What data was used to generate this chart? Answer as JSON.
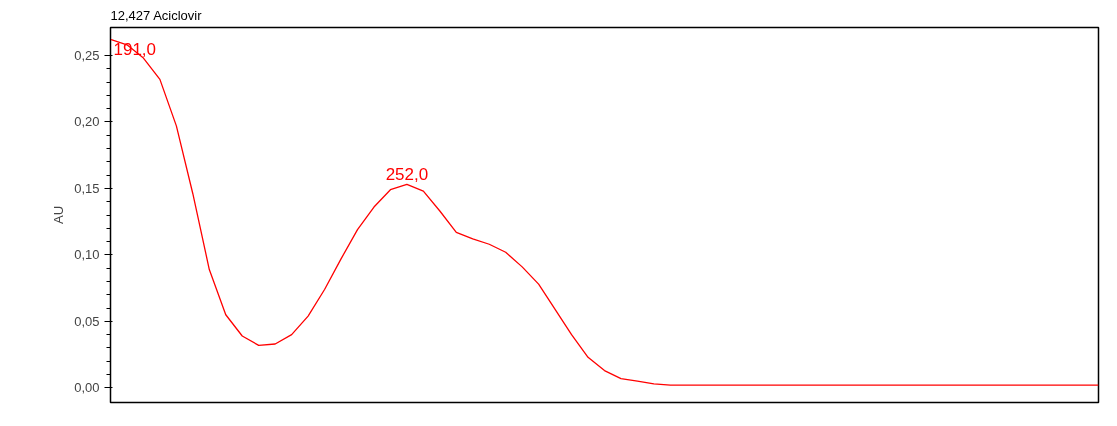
{
  "chart_data": {
    "type": "line",
    "title": "12,427 Aciclovir",
    "ylabel": "AU",
    "categories": [
      null,
      null,
      null,
      null,
      null,
      null,
      null,
      null,
      null,
      null,
      null,
      null,
      null,
      null,
      null,
      null,
      null,
      null,
      null,
      null,
      null,
      null,
      null,
      null,
      null,
      null,
      null,
      null,
      null,
      null,
      null,
      null,
      null,
      null,
      null,
      null,
      null,
      null,
      null,
      null,
      null,
      null,
      null,
      null,
      null,
      null,
      null,
      null,
      null,
      null,
      null,
      null,
      null,
      null,
      null,
      null,
      null,
      null,
      null,
      null,
      null
    ],
    "series": [
      {
        "color": "#ff0000",
        "values": [
          0.262,
          0.258,
          0.248,
          0.232,
          0.197,
          0.146,
          0.089,
          0.055,
          0.039,
          0.032,
          0.033,
          0.04,
          0.054,
          0.074,
          0.097,
          0.119,
          0.136,
          0.149,
          0.153,
          0.148,
          0.133,
          0.117,
          0.112,
          0.108,
          0.102,
          0.091,
          0.078,
          0.059,
          0.04,
          0.023,
          0.013,
          0.007,
          0.005,
          0.003,
          0.002,
          0.002,
          0.002,
          0.002,
          0.002,
          0.002,
          0.002,
          0.002,
          0.002,
          0.002,
          0.002,
          0.002,
          0.002,
          0.002,
          0.002,
          0.002,
          0.002,
          0.002,
          0.002,
          0.002,
          0.002,
          0.002,
          0.002,
          0.002,
          0.002,
          0.002,
          0.002
        ]
      }
    ],
    "annotations": [
      "191,0",
      "252,0"
    ],
    "ylim": [
      -0.011,
      0.271
    ],
    "yticks": [
      {
        "value": 0.0,
        "label": "0,00"
      },
      {
        "value": 0.05,
        "label": "0,05"
      },
      {
        "value": 0.1,
        "label": "0,10"
      },
      {
        "value": 0.15,
        "label": "0,15"
      },
      {
        "value": 0.2,
        "label": "0,20"
      },
      {
        "value": 0.25,
        "label": "0,25"
      }
    ],
    "tick_labels": "y",
    "grid": false,
    "line_style": "solid"
  }
}
